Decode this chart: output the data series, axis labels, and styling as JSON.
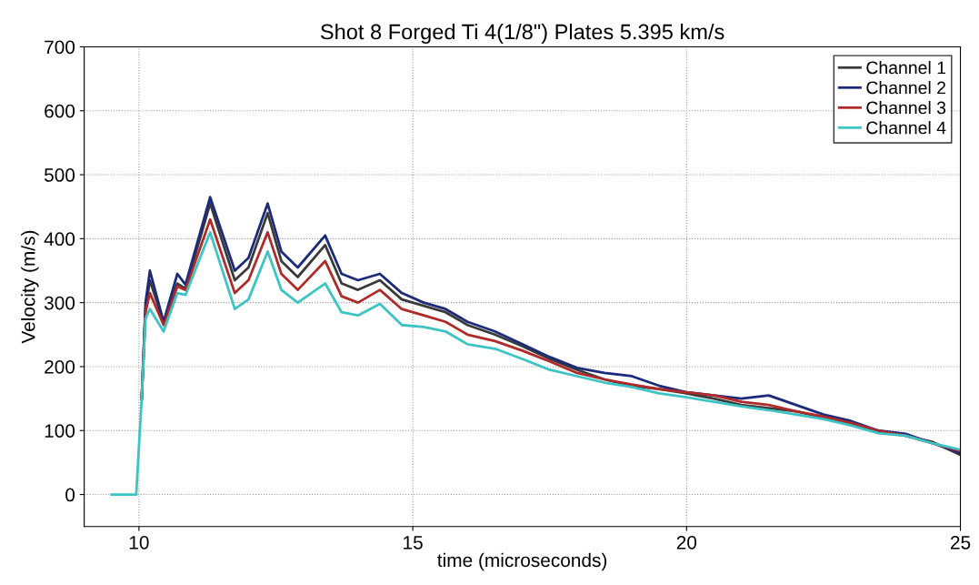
{
  "chart_data": {
    "type": "line",
    "title": "Shot 8 Forged Ti 4(1/8\") Plates 5.395 km/s",
    "xlabel": "time (microseconds)",
    "ylabel": "Velocity (m/s)",
    "x": [
      9.5,
      9.95,
      10.05,
      10.12,
      10.2,
      10.45,
      10.7,
      10.85,
      11.3,
      11.75,
      12.0,
      12.35,
      12.6,
      12.9,
      13.4,
      13.7,
      14.0,
      14.4,
      14.8,
      15.2,
      15.6,
      16.0,
      16.5,
      17.0,
      17.5,
      18.0,
      18.5,
      19.0,
      19.5,
      20.0,
      20.5,
      21.0,
      21.5,
      22.0,
      22.5,
      23.0,
      23.5,
      24.0,
      24.5,
      25.0
    ],
    "series": [
      {
        "name": "Channel 1",
        "color": "#3a3a3a",
        "values": [
          null,
          null,
          150,
          290,
          335,
          268,
          330,
          322,
          455,
          335,
          355,
          440,
          365,
          340,
          390,
          330,
          320,
          335,
          305,
          295,
          285,
          265,
          250,
          232,
          212,
          195,
          180,
          170,
          165,
          158,
          150,
          140,
          135,
          130,
          120,
          110,
          98,
          92,
          82,
          62
        ]
      },
      {
        "name": "Channel 2",
        "color": "#1c2a7a",
        "values": [
          null,
          null,
          150,
          300,
          350,
          270,
          345,
          328,
          465,
          350,
          370,
          455,
          380,
          355,
          405,
          345,
          335,
          345,
          315,
          300,
          290,
          270,
          255,
          235,
          215,
          198,
          190,
          185,
          170,
          160,
          155,
          150,
          155,
          140,
          125,
          115,
          100,
          95,
          80,
          65
        ]
      },
      {
        "name": "Channel 3",
        "color": "#b02a2a",
        "values": [
          null,
          null,
          150,
          285,
          315,
          265,
          325,
          320,
          430,
          315,
          335,
          410,
          345,
          320,
          365,
          310,
          300,
          320,
          290,
          280,
          270,
          250,
          240,
          225,
          208,
          190,
          180,
          172,
          165,
          160,
          155,
          145,
          140,
          130,
          122,
          112,
          100,
          92,
          80,
          68
        ]
      },
      {
        "name": "Channel 4",
        "color": "#3cc4c4",
        "values": [
          0,
          0,
          150,
          275,
          290,
          255,
          315,
          312,
          410,
          290,
          305,
          380,
          320,
          300,
          330,
          285,
          280,
          298,
          265,
          262,
          255,
          235,
          228,
          212,
          195,
          185,
          175,
          168,
          158,
          152,
          145,
          138,
          132,
          125,
          118,
          108,
          96,
          92,
          80,
          70
        ]
      }
    ],
    "xlim": [
      9,
      25
    ],
    "xticks": [
      10,
      15,
      20,
      25
    ],
    "ylim": [
      -50,
      700
    ],
    "yticks": [
      0,
      100,
      200,
      300,
      400,
      500,
      600,
      700
    ],
    "grid": true,
    "legend": "top right",
    "line_style": "solid",
    "marker": "none"
  }
}
